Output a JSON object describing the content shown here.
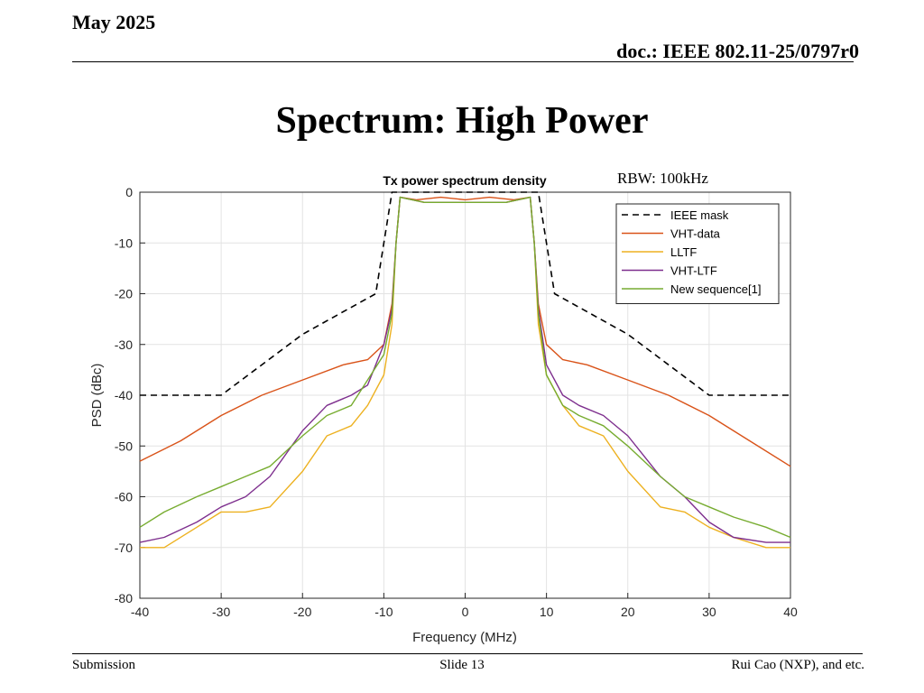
{
  "header": {
    "date": "May 2025",
    "doc": "doc.: IEEE 802.11-25/0797r0"
  },
  "slide": {
    "title": "Spectrum: High Power",
    "rbw_note": "RBW: 100kHz"
  },
  "footer": {
    "left": "Submission",
    "center": "Slide 13",
    "right": "Rui Cao (NXP), and etc."
  },
  "chart_data": {
    "type": "line",
    "title": "Tx power spectrum density",
    "xlabel": "Frequency (MHz)",
    "ylabel": "PSD (dBc)",
    "xlim": [
      -40,
      40
    ],
    "ylim": [
      -80,
      0
    ],
    "xticks": [
      -40,
      -30,
      -20,
      -10,
      0,
      10,
      20,
      30,
      40
    ],
    "yticks": [
      0,
      -10,
      -20,
      -30,
      -40,
      -50,
      -60,
      -70,
      -80
    ],
    "grid": true,
    "legend_position": "top-right",
    "series": [
      {
        "name": "IEEE mask",
        "color": "#000000",
        "dashed": true,
        "x": [
          -40,
          -30,
          -20,
          -11,
          -9,
          9,
          11,
          20,
          30,
          40
        ],
        "y": [
          -40,
          -40,
          -28,
          -20,
          0,
          0,
          -20,
          -28,
          -40,
          -40
        ]
      },
      {
        "name": "VHT-data",
        "color": "#d95319",
        "x": [
          -40,
          -35,
          -30,
          -25,
          -20,
          -15,
          -12,
          -10,
          -9,
          -8.5,
          -8,
          -6,
          -3,
          0,
          3,
          6,
          8,
          8.5,
          9,
          10,
          12,
          15,
          20,
          25,
          30,
          35,
          40
        ],
        "y": [
          -53,
          -49,
          -44,
          -40,
          -37,
          -34,
          -33,
          -30,
          -22,
          -10,
          -1,
          -1.5,
          -1,
          -1.5,
          -1,
          -1.5,
          -1,
          -10,
          -22,
          -30,
          -33,
          -34,
          -37,
          -40,
          -44,
          -49,
          -54
        ]
      },
      {
        "name": "LLTF",
        "color": "#edb120",
        "x": [
          -40,
          -37,
          -33,
          -30,
          -27,
          -24,
          -20,
          -17,
          -14,
          -12,
          -10,
          -9,
          -8.5,
          -8,
          -5,
          0,
          5,
          8,
          8.5,
          9,
          10,
          12,
          14,
          17,
          20,
          24,
          27,
          30,
          33,
          37,
          40
        ],
        "y": [
          -70,
          -70,
          -66,
          -63,
          -63,
          -62,
          -55,
          -48,
          -46,
          -42,
          -36,
          -26,
          -10,
          -1,
          -2,
          -2,
          -2,
          -1,
          -10,
          -26,
          -36,
          -42,
          -46,
          -48,
          -55,
          -62,
          -63,
          -66,
          -68,
          -70,
          -70
        ]
      },
      {
        "name": "VHT-LTF",
        "color": "#7e2f8e",
        "x": [
          -40,
          -37,
          -33,
          -30,
          -27,
          -24,
          -20,
          -17,
          -14,
          -12,
          -10,
          -9,
          -8.5,
          -8,
          -5,
          0,
          5,
          8,
          8.5,
          9,
          10,
          12,
          14,
          17,
          20,
          24,
          27,
          30,
          33,
          37,
          40
        ],
        "y": [
          -69,
          -68,
          -65,
          -62,
          -60,
          -56,
          -47,
          -42,
          -40,
          -38,
          -30,
          -23,
          -10,
          -1,
          -2,
          -2,
          -2,
          -1,
          -10,
          -23,
          -34,
          -40,
          -42,
          -44,
          -48,
          -56,
          -60,
          -65,
          -68,
          -69,
          -69
        ]
      },
      {
        "name": "New sequence[1]",
        "color": "#77ac30",
        "x": [
          -40,
          -37,
          -33,
          -30,
          -27,
          -24,
          -20,
          -17,
          -14,
          -12,
          -10,
          -9,
          -8.5,
          -8,
          -5,
          0,
          5,
          8,
          8.5,
          9,
          10,
          12,
          14,
          17,
          20,
          24,
          27,
          30,
          33,
          37,
          40
        ],
        "y": [
          -66,
          -63,
          -60,
          -58,
          -56,
          -54,
          -48,
          -44,
          -42,
          -37,
          -32,
          -24,
          -10,
          -1,
          -2,
          -2,
          -2,
          -1,
          -10,
          -24,
          -36,
          -42,
          -44,
          -46,
          -50,
          -56,
          -60,
          -62,
          -64,
          -66,
          -68
        ]
      }
    ]
  }
}
